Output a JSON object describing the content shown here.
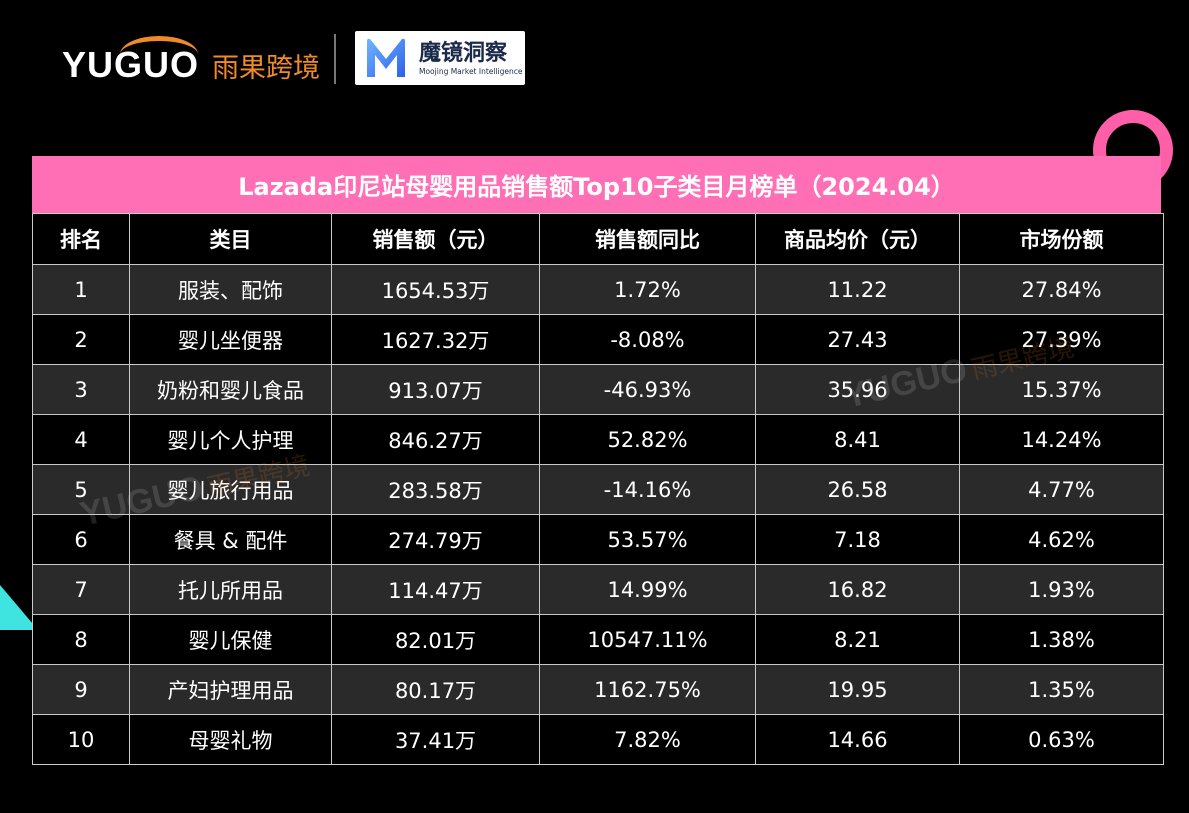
{
  "brand": {
    "yuguo_word": "YUGUO",
    "yuguo_cn": "雨果跨境",
    "mojing_cn": "魔镜洞察",
    "mojing_en": "Moojing Market Intelligence",
    "orange": "#f08a2a",
    "pink": "#ff6fb5",
    "cyan": "#3fe3e0"
  },
  "watermark": {
    "word": "YUGUO",
    "cn": "雨果跨境"
  },
  "chart_data": {
    "type": "table",
    "title": "Lazada印尼站母婴用品销售额Top10子类目月榜单（2024.04）",
    "columns": [
      "排名",
      "类目",
      "销售额（元）",
      "销售额同比",
      "商品均价（元）",
      "市场份额"
    ],
    "rows": [
      [
        "1",
        "服装、配饰",
        "1654.53万",
        "1.72%",
        "11.22",
        "27.84%"
      ],
      [
        "2",
        "婴儿坐便器",
        "1627.32万",
        "-8.08%",
        "27.43",
        "27.39%"
      ],
      [
        "3",
        "奶粉和婴儿食品",
        "913.07万",
        "-46.93%",
        "35.96",
        "15.37%"
      ],
      [
        "4",
        "婴儿个人护理",
        "846.27万",
        "52.82%",
        "8.41",
        "14.24%"
      ],
      [
        "5",
        "婴儿旅行用品",
        "283.58万",
        "-14.16%",
        "26.58",
        "4.77%"
      ],
      [
        "6",
        "餐具 & 配件",
        "274.79万",
        "53.57%",
        "7.18",
        "4.62%"
      ],
      [
        "7",
        "托儿所用品",
        "114.47万",
        "14.99%",
        "16.82",
        "1.93%"
      ],
      [
        "8",
        "婴儿保健",
        "82.01万",
        "10547.11%",
        "8.21",
        "1.38%"
      ],
      [
        "9",
        "产妇护理用品",
        "80.17万",
        "1162.75%",
        "19.95",
        "1.35%"
      ],
      [
        "10",
        "母婴礼物",
        "37.41万",
        "7.82%",
        "14.66",
        "0.63%"
      ]
    ]
  }
}
